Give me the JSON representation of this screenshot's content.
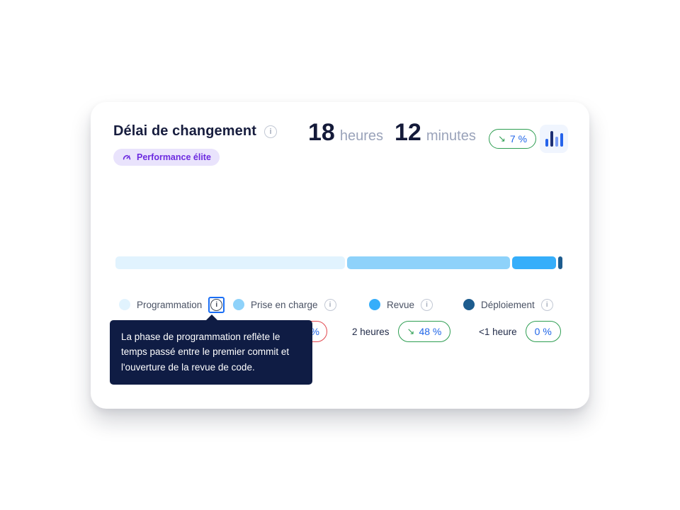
{
  "card": {
    "title": "Délai de changement",
    "badge": {
      "label": "Performance élite",
      "text_color": "#6d2be0",
      "bg_color": "#e9e3fc"
    },
    "metrics": [
      {
        "value": "18",
        "unit": "heures"
      },
      {
        "value": "12",
        "unit": "minutes"
      }
    ],
    "trend_badge": {
      "arrow": "↘",
      "label": "7 %",
      "border_color": "#2e9e52",
      "value_color": "#2166e8"
    }
  },
  "chart_data": {
    "type": "stacked-bar",
    "title": "Délai de changement",
    "total": "18 heures 12 minutes",
    "overall_trend": "↘ 7 %",
    "segments": [
      {
        "label": "Programmation",
        "color": "#e1f3fe",
        "width_pct": 51.3
      },
      {
        "label": "Prise en charge",
        "color": "#8ed2fa",
        "width_pct": 36.4
      },
      {
        "label": "Revue",
        "color": "#36aefa",
        "width_pct": 9.8
      },
      {
        "label": "Déploiement",
        "color": "#1d5c8e",
        "width_pct": 0.9
      }
    ]
  },
  "legend": {
    "items": [
      {
        "label": "Programmation"
      },
      {
        "label": "Prise en charge"
      },
      {
        "label": "Revue"
      },
      {
        "label": "Déploiement"
      }
    ]
  },
  "values": {
    "prise_en_charge": {
      "badge_visible_text": "%",
      "badge_border_color": "#e2484f"
    },
    "revue": {
      "value": "2 heures",
      "trend_arrow": "↘",
      "trend": "48 %"
    },
    "deploiement": {
      "value": "<1 heure",
      "trend": "0 %"
    }
  },
  "tooltip": {
    "text": "La phase de programmation reflète le temps passé entre le premier commit et l'ouverture de la revue de code."
  },
  "icons": {
    "title_info": "i",
    "legend_info": "i"
  }
}
